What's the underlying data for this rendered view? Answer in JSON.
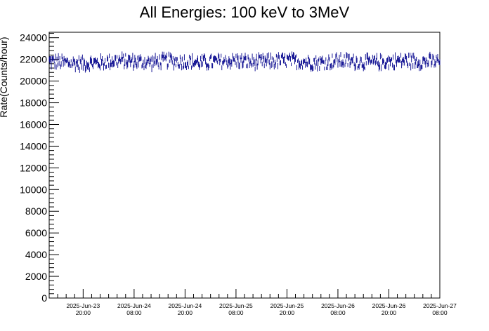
{
  "chart_data": {
    "type": "scatter",
    "title": "All Energies:  100 keV to 3MeV",
    "xlabel": "",
    "ylabel": "Rate(Counts/hour)",
    "ylim": [
      0,
      24500
    ],
    "yticks": [
      0,
      2000,
      4000,
      6000,
      8000,
      10000,
      12000,
      14000,
      16000,
      18000,
      20000,
      22000,
      24000
    ],
    "xlim": [
      "2025-06-23 12:00",
      "2025-06-27 08:00"
    ],
    "xticks": [
      {
        "t": "2025-06-23 20:00",
        "date": "2025-Jun-23",
        "time": "20:00"
      },
      {
        "t": "2025-06-24 08:00",
        "date": "2025-Jun-24",
        "time": "08:00"
      },
      {
        "t": "2025-06-24 20:00",
        "date": "2025-Jun-24",
        "time": "20:00"
      },
      {
        "t": "2025-06-25 08:00",
        "date": "2025-Jun-25",
        "time": "08:00"
      },
      {
        "t": "2025-06-25 20:00",
        "date": "2025-Jun-25",
        "time": "20:00"
      },
      {
        "t": "2025-06-26 08:00",
        "date": "2025-Jun-26",
        "time": "08:00"
      },
      {
        "t": "2025-06-26 20:00",
        "date": "2025-Jun-26",
        "time": "20:00"
      },
      {
        "t": "2025-06-27 08:00",
        "date": "2025-Jun-27",
        "time": "08:00"
      }
    ],
    "series": [
      {
        "color": "#00008b",
        "x": [
          "2025-06-23 12:00",
          "2025-06-23 16:00",
          "2025-06-23 20:00",
          "2025-06-24 00:00",
          "2025-06-24 04:00",
          "2025-06-24 08:00",
          "2025-06-24 12:00",
          "2025-06-24 16:00",
          "2025-06-24 20:00",
          "2025-06-25 00:00",
          "2025-06-25 04:00",
          "2025-06-25 08:00",
          "2025-06-25 12:00",
          "2025-06-25 16:00",
          "2025-06-25 20:00",
          "2025-06-26 00:00",
          "2025-06-26 04:00",
          "2025-06-26 08:00",
          "2025-06-26 12:00",
          "2025-06-26 16:00",
          "2025-06-26 20:00",
          "2025-06-27 00:00",
          "2025-06-27 04:00",
          "2025-06-27 08:00"
        ],
        "y": [
          21800,
          21700,
          21600,
          21700,
          21900,
          21800,
          21700,
          21900,
          21800,
          21700,
          21800,
          21900,
          21700,
          21800,
          21900,
          21800,
          21700,
          21900,
          21800,
          21700,
          21800,
          21900,
          21800,
          21800
        ],
        "spread": 1200
      }
    ],
    "grid": false,
    "legend": "none"
  }
}
